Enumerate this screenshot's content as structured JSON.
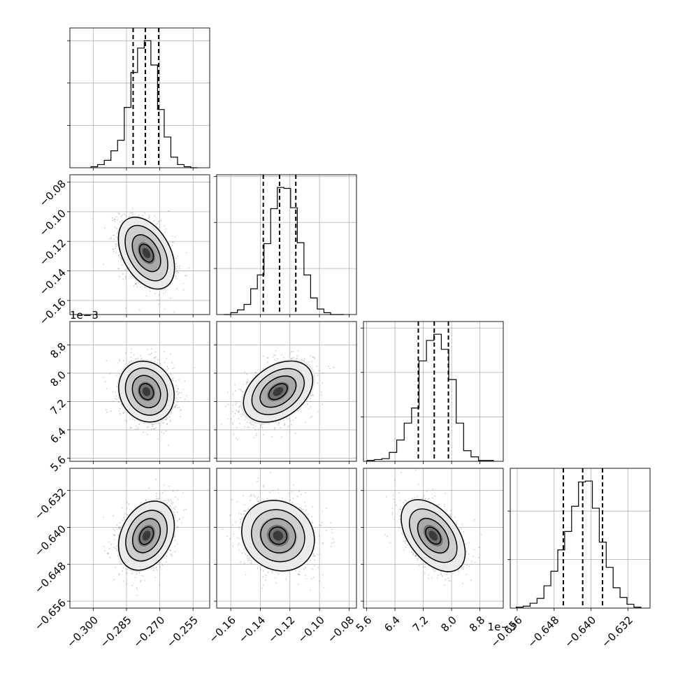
{
  "chart_data": {
    "type": "corner",
    "title": "",
    "grid": true,
    "parameters": [
      {
        "axis_label": "",
        "ticks": [
          -0.3,
          -0.285,
          -0.27,
          -0.255
        ],
        "tick_labels": [
          "−0.300",
          "−0.285",
          "−0.270",
          "−0.255"
        ],
        "range": [
          -0.3105,
          -0.2475
        ],
        "offset_label": "",
        "quantiles": [
          -0.282,
          -0.2765,
          -0.2705
        ],
        "hist_edges": [
          -0.301,
          -0.298,
          -0.295,
          -0.292,
          -0.289,
          -0.286,
          -0.283,
          -0.28,
          -0.277,
          -0.274,
          -0.271,
          -0.268,
          -0.265,
          -0.262,
          -0.259,
          -0.256,
          -0.253
        ],
        "hist_counts": [
          1,
          3,
          7,
          16,
          26,
          57,
          90,
          113,
          120,
          97,
          55,
          29,
          10,
          3,
          1,
          0
        ]
      },
      {
        "axis_label": "",
        "ticks": [
          -0.16,
          -0.14,
          -0.12,
          -0.1,
          -0.08
        ],
        "tick_labels": [
          "−0.16",
          "−0.14",
          "−0.12",
          "−0.10",
          "−0.08"
        ],
        "range": [
          -0.1695,
          -0.075
        ],
        "offset_label": "",
        "quantiles": [
          -0.138,
          -0.127,
          -0.116
        ],
        "hist_edges": [
          -0.1645,
          -0.16,
          -0.1555,
          -0.151,
          -0.1465,
          -0.142,
          -0.1375,
          -0.133,
          -0.1285,
          -0.124,
          -0.1195,
          -0.115,
          -0.1105,
          -0.106,
          -0.1015,
          -0.097,
          -0.0925,
          -0.088,
          -0.0835
        ],
        "hist_counts": [
          0,
          2,
          5,
          11,
          28,
          43,
          77,
          115,
          138,
          137,
          116,
          78,
          43,
          18,
          6,
          2,
          0,
          0
        ]
      },
      {
        "axis_label": "",
        "ticks": [
          5.6,
          6.4,
          7.2,
          8.0,
          8.8
        ],
        "tick_labels": [
          "5.6",
          "6.4",
          "7.2",
          "8.0",
          "8.8"
        ],
        "range": [
          5.51,
          9.46
        ],
        "offset_label": "1e−3",
        "quantiles": [
          7.06,
          7.51,
          7.91
        ],
        "hist_edges": [
          5.61,
          5.82,
          6.03,
          6.24,
          6.45,
          6.66,
          6.87,
          7.08,
          7.29,
          7.5,
          7.71,
          7.92,
          8.13,
          8.34,
          8.55,
          8.76,
          8.97,
          9.18
        ],
        "hist_counts": [
          1,
          2,
          3,
          10,
          24,
          43,
          60,
          113,
          136,
          143,
          126,
          92,
          43,
          12,
          5,
          1,
          1
        ]
      },
      {
        "axis_label": "",
        "ticks": [
          -0.656,
          -0.648,
          -0.64,
          -0.632
        ],
        "tick_labels": [
          "−0.656",
          "−0.648",
          "−0.640",
          "−0.632"
        ],
        "range": [
          -0.6575,
          -0.6272
        ],
        "offset_label": "",
        "quantiles": [
          -0.646,
          -0.6418,
          -0.6375
        ],
        "hist_edges": [
          -0.6562,
          -0.6547,
          -0.6532,
          -0.6517,
          -0.6502,
          -0.6487,
          -0.6472,
          -0.6457,
          -0.6442,
          -0.6427,
          -0.6412,
          -0.6397,
          -0.6382,
          -0.6367,
          -0.6352,
          -0.6337,
          -0.6322,
          -0.6307,
          -0.6292
        ],
        "hist_counts": [
          1,
          2,
          5,
          10,
          23,
          38,
          60,
          79,
          105,
          130,
          131,
          103,
          68,
          42,
          21,
          11,
          4,
          1
        ]
      }
    ],
    "pairs": [
      {
        "x_param": 0,
        "y_param": 1,
        "mean": [
          -0.276,
          -0.128
        ],
        "sd": [
          0.006,
          0.0115
        ],
        "corr": -0.4
      },
      {
        "x_param": 0,
        "y_param": 2,
        "mean": [
          -0.276,
          7.48
        ],
        "sd": [
          0.006,
          0.42
        ],
        "corr": -0.15
      },
      {
        "x_param": 1,
        "y_param": 2,
        "mean": [
          -0.128,
          7.48
        ],
        "sd": [
          0.0115,
          0.42
        ],
        "corr": 0.4
      },
      {
        "x_param": 0,
        "y_param": 3,
        "mean": [
          -0.276,
          -0.6418
        ],
        "sd": [
          0.006,
          0.0036
        ],
        "corr": 0.3
      },
      {
        "x_param": 1,
        "y_param": 3,
        "mean": [
          -0.128,
          -0.6418
        ],
        "sd": [
          0.0115,
          0.0036
        ],
        "corr": -0.1
      },
      {
        "x_param": 2,
        "y_param": 3,
        "mean": [
          7.48,
          -0.6418
        ],
        "sd": [
          0.42,
          0.0036
        ],
        "corr": -0.45
      }
    ],
    "contour_levels_sigma": [
      0.5,
      1.0,
      1.5,
      2.0
    ],
    "style": {
      "line_color": "#000000",
      "grid_color": "#b0b0b0",
      "point_color": "#8c8c8c"
    }
  }
}
